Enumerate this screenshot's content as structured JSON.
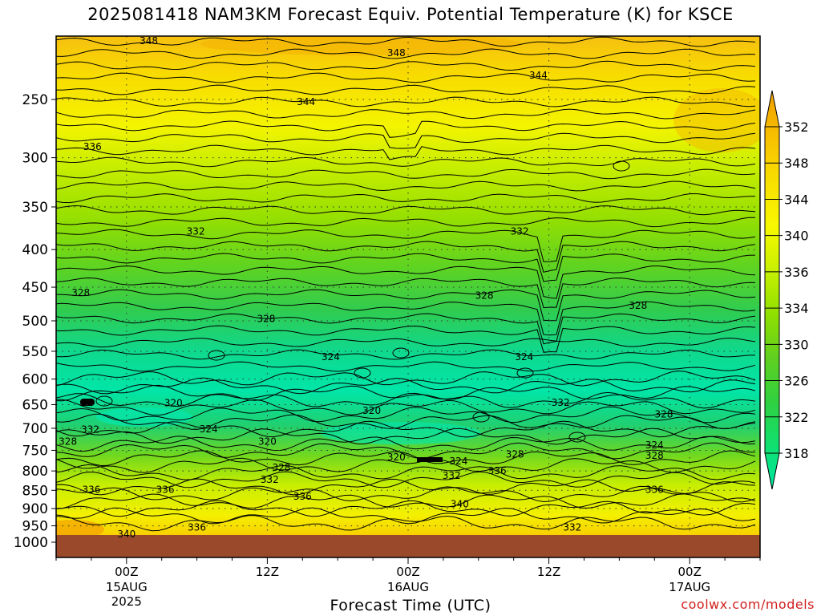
{
  "header": {
    "title": "2025081418 NAM3KM Forecast Equiv. Potential Temperature (K) for KSCE"
  },
  "footer": {
    "credit": "coolwx.com/models"
  },
  "colors": {
    "ground": "#9a4a2a",
    "contour": "#000000",
    "credit": "#d22020"
  },
  "chart_data": {
    "type": "heatmap",
    "title": "2025081418 NAM3KM Forecast Equiv. Potential Temperature (K) for KSCE",
    "xlabel": "Forecast Time (UTC)",
    "ylabel": "",
    "x_ticks": [
      {
        "label": "00Z",
        "sub1": "15AUG",
        "sub2": "2025",
        "hour": 6
      },
      {
        "label": "12Z",
        "sub1": "",
        "sub2": "",
        "hour": 18
      },
      {
        "label": "00Z",
        "sub1": "16AUG",
        "sub2": "",
        "hour": 30
      },
      {
        "label": "12Z",
        "sub1": "",
        "sub2": "",
        "hour": 42
      },
      {
        "label": "00Z",
        "sub1": "17AUG",
        "sub2": "",
        "hour": 54
      }
    ],
    "x_range_hours": [
      0,
      60
    ],
    "y_axis": {
      "scale": "log-pressure",
      "inverted": true,
      "range_hPa": [
        200,
        1000
      ],
      "ticks": [
        250,
        300,
        350,
        400,
        450,
        500,
        550,
        600,
        650,
        700,
        750,
        800,
        850,
        900,
        950,
        1000
      ]
    },
    "grid": true,
    "colorbar": {
      "levels": [
        318,
        322,
        326,
        330,
        334,
        336,
        340,
        344,
        348,
        352
      ],
      "colors": [
        "#00e6a0",
        "#10e070",
        "#30d040",
        "#60d020",
        "#90e000",
        "#c8f000",
        "#f8f800",
        "#f8e000",
        "#f8c000",
        "#f0a000"
      ]
    },
    "contour_labels": [
      {
        "text": "348",
        "hour": 7.9,
        "p": 208
      },
      {
        "text": "348",
        "hour": 29.0,
        "p": 216
      },
      {
        "text": "344",
        "hour": 41.1,
        "p": 232
      },
      {
        "text": "344",
        "hour": 21.3,
        "p": 252
      },
      {
        "text": "336",
        "hour": 3.1,
        "p": 290
      },
      {
        "text": "332",
        "hour": 11.9,
        "p": 378
      },
      {
        "text": "332",
        "hour": 39.5,
        "p": 378
      },
      {
        "text": "328",
        "hour": 2.1,
        "p": 458
      },
      {
        "text": "328",
        "hour": 36.5,
        "p": 462
      },
      {
        "text": "328",
        "hour": 49.6,
        "p": 477
      },
      {
        "text": "328",
        "hour": 17.9,
        "p": 497
      },
      {
        "text": "324",
        "hour": 23.4,
        "p": 560
      },
      {
        "text": "324",
        "hour": 39.9,
        "p": 560
      },
      {
        "text": "320",
        "hour": 10.0,
        "p": 647
      },
      {
        "text": "320",
        "hour": 26.9,
        "p": 662
      },
      {
        "text": "332",
        "hour": 43.0,
        "p": 646
      },
      {
        "text": "328",
        "hour": 51.8,
        "p": 670
      },
      {
        "text": "332",
        "hour": 2.9,
        "p": 703
      },
      {
        "text": "324",
        "hour": 13.0,
        "p": 702
      },
      {
        "text": "328",
        "hour": 1.0,
        "p": 730
      },
      {
        "text": "320",
        "hour": 18.0,
        "p": 730
      },
      {
        "text": "324",
        "hour": 51.0,
        "p": 738
      },
      {
        "text": "320",
        "hour": 29.0,
        "p": 766
      },
      {
        "text": "324",
        "hour": 34.3,
        "p": 776
      },
      {
        "text": "328",
        "hour": 39.1,
        "p": 760
      },
      {
        "text": "328",
        "hour": 51.0,
        "p": 762
      },
      {
        "text": "328",
        "hour": 19.2,
        "p": 792
      },
      {
        "text": "336",
        "hour": 37.6,
        "p": 800
      },
      {
        "text": "332",
        "hour": 18.2,
        "p": 822
      },
      {
        "text": "332",
        "hour": 33.7,
        "p": 812
      },
      {
        "text": "336",
        "hour": 3.0,
        "p": 848
      },
      {
        "text": "336",
        "hour": 9.3,
        "p": 848
      },
      {
        "text": "336",
        "hour": 51.0,
        "p": 848
      },
      {
        "text": "336",
        "hour": 21.0,
        "p": 867
      },
      {
        "text": "340",
        "hour": 34.4,
        "p": 887
      },
      {
        "text": "336",
        "hour": 12.0,
        "p": 955
      },
      {
        "text": "332",
        "hour": 44.0,
        "p": 955
      },
      {
        "text": "340",
        "hour": 6.0,
        "p": 975
      }
    ]
  }
}
